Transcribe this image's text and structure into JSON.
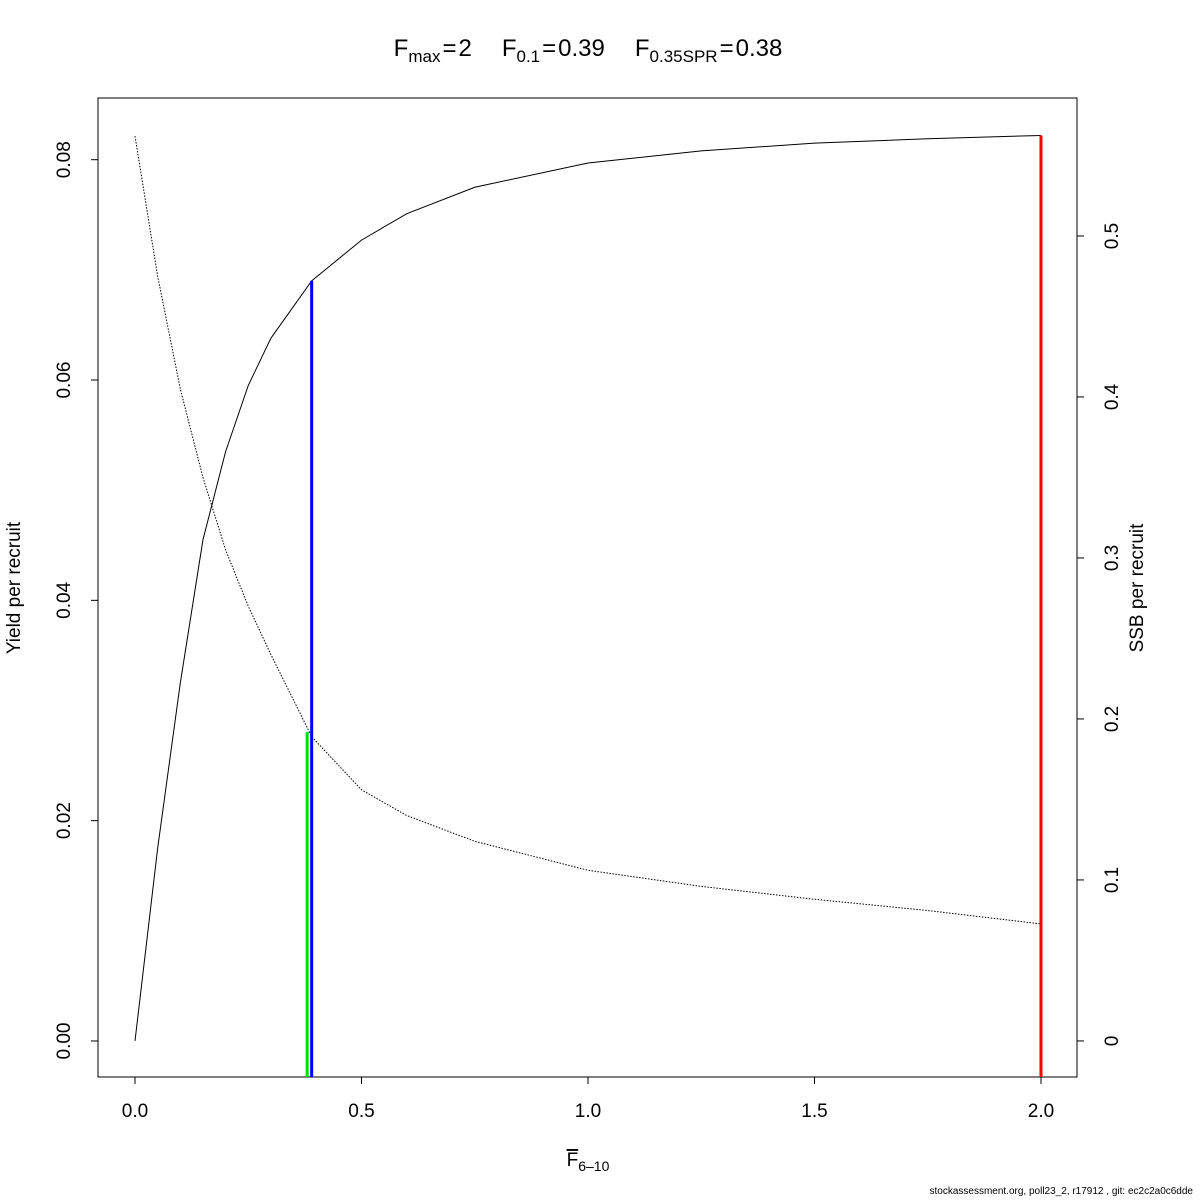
{
  "chart_data": {
    "type": "line",
    "title_items": [
      {
        "label": "F",
        "sub": "max",
        "eq": "=",
        "value": 2,
        "color": "#ff0000",
        "y": 0.0822,
        "axis": "y"
      },
      {
        "label": "F",
        "sub": "0.1",
        "eq": "=",
        "value": 0.39,
        "color": "#0000ff",
        "y": 0.069,
        "axis": "y"
      },
      {
        "label": "F",
        "sub": "0.35SPR",
        "eq": "=",
        "value": 0.38,
        "color": "#00dd00",
        "y": 0.192,
        "axis": "y2"
      }
    ],
    "x_label": {
      "text": "F",
      "sub": "6–10"
    },
    "y_label": "Yield per recruit",
    "y2_label": "SSB per recruit",
    "footer": "stockassessment.org, poll23_2, r17912 , git: ec2c2a0c6dde",
    "x": [
      0,
      0.05,
      0.1,
      0.15,
      0.2,
      0.25,
      0.3,
      0.39,
      0.5,
      0.6,
      0.75,
      1,
      1.25,
      1.5,
      1.75,
      2
    ],
    "series": [
      {
        "color": "#000000",
        "dash": "solid",
        "axis": "y",
        "values": [
          0,
          0.0175,
          0.0325,
          0.0455,
          0.0535,
          0.0595,
          0.0638,
          0.069,
          0.0727,
          0.0751,
          0.0775,
          0.0797,
          0.0808,
          0.0815,
          0.0819,
          0.0822
        ]
      },
      {
        "color": "#000000",
        "dash": "dotted",
        "axis": "y2",
        "values": [
          0.562,
          0.475,
          0.405,
          0.35,
          0.305,
          0.27,
          0.24,
          0.189,
          0.156,
          0.14,
          0.124,
          0.106,
          0.096,
          0.088,
          0.081,
          0.0727
        ]
      }
    ],
    "xlim": [
      -0.0817,
      2.0795
    ],
    "ylim": [
      -0.00327,
      0.0856
    ],
    "y2lim": [
      -0.0224,
      0.5857
    ],
    "xticks": [
      {
        "value": 0,
        "label": "0.0"
      },
      {
        "value": 0.5,
        "label": "0.5"
      },
      {
        "value": 1,
        "label": "1.0"
      },
      {
        "value": 1.5,
        "label": "1.5"
      },
      {
        "value": 2,
        "label": "2.0"
      }
    ],
    "yticks": [
      {
        "value": 0,
        "label": "0.00"
      },
      {
        "value": 0.02,
        "label": "0.02"
      },
      {
        "value": 0.04,
        "label": "0.04"
      },
      {
        "value": 0.06,
        "label": "0.06"
      },
      {
        "value": 0.08,
        "label": "0.08"
      }
    ],
    "y2ticks": [
      0,
      0.1,
      0.2,
      0.3,
      0.4,
      0.5
    ]
  }
}
